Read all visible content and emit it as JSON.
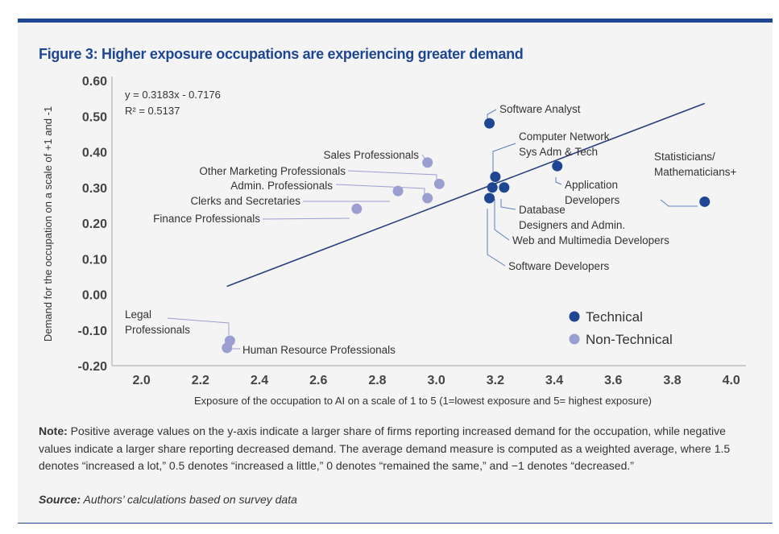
{
  "figure_title": "Figure 3: Higher exposure occupations are experiencing greater demand",
  "chart_data": {
    "type": "scatter",
    "title": "Figure 3: Higher exposure occupations are experiencing greater demand",
    "xlabel": "Exposure of the occupation to AI on a scale of 1 to 5 (1=lowest exposure and 5= highest exposure)",
    "ylabel": "Demand for the occupation on a scale of +1 and -1",
    "xlim": [
      1.9,
      4.05
    ],
    "ylim": [
      -0.2,
      0.6
    ],
    "x_ticks": [
      "2.0",
      "2.2",
      "2.4",
      "2.6",
      "2.8",
      "3.0",
      "3.2",
      "3.4",
      "3.6",
      "3.8",
      "4.0"
    ],
    "y_ticks": [
      "0.60",
      "0.50",
      "0.40",
      "0.30",
      "0.20",
      "0.10",
      "0.00",
      "-0.10",
      "-0.20"
    ],
    "grid": false,
    "legend_position": "bottom-right",
    "trendline": {
      "equation": "y = 0.3183x - 0.7176",
      "r2": "R² = 0.5137",
      "slope": 0.3183,
      "intercept": -0.7176,
      "x_range": [
        2.29,
        3.91
      ]
    },
    "series": [
      {
        "name": "Technical",
        "color": "#1f4693",
        "points": [
          {
            "label": "Software Analyst",
            "x": 3.18,
            "y": 0.48
          },
          {
            "label": "Computer Network Sys Adm & Tech",
            "x": 3.2,
            "y": 0.33
          },
          {
            "label": "Web and Multimedia Developers",
            "x": 3.19,
            "y": 0.3
          },
          {
            "label": "Database Designers and Admin.",
            "x": 3.23,
            "y": 0.3
          },
          {
            "label": "Software Developers",
            "x": 3.18,
            "y": 0.27
          },
          {
            "label": "Application Developers",
            "x": 3.41,
            "y": 0.36
          },
          {
            "label": "Statisticians/ Mathematicians+",
            "x": 3.91,
            "y": 0.26
          }
        ]
      },
      {
        "name": "Non-Technical",
        "color": "#9b9fd0",
        "points": [
          {
            "label": "Sales Professionals",
            "x": 2.97,
            "y": 0.37
          },
          {
            "label": "Other Marketing Professionals",
            "x": 3.01,
            "y": 0.31
          },
          {
            "label": "Admin. Professionals",
            "x": 2.97,
            "y": 0.27
          },
          {
            "label": "Clerks and Secretaries",
            "x": 2.87,
            "y": 0.29
          },
          {
            "label": "Finance Professionals",
            "x": 2.73,
            "y": 0.24
          },
          {
            "label": "Legal Professionals",
            "x": 2.3,
            "y": -0.13
          },
          {
            "label": "Human Resource Professionals",
            "x": 2.29,
            "y": -0.15
          }
        ]
      }
    ]
  },
  "note_label": "Note:",
  "note_text": " Positive average values on the y-axis indicate a larger share of firms reporting increased demand for the occupation, while negative values indicate a larger share reporting decreased demand. The average demand measure is computed as a weighted average, where 1.5 denotes “increased a lot,” 0.5 denotes “increased a little,” 0 denotes “remained the same,” and −1 denotes “decreased.”",
  "source_label": "Source:",
  "source_text": " Authors’ calculations based on survey data"
}
